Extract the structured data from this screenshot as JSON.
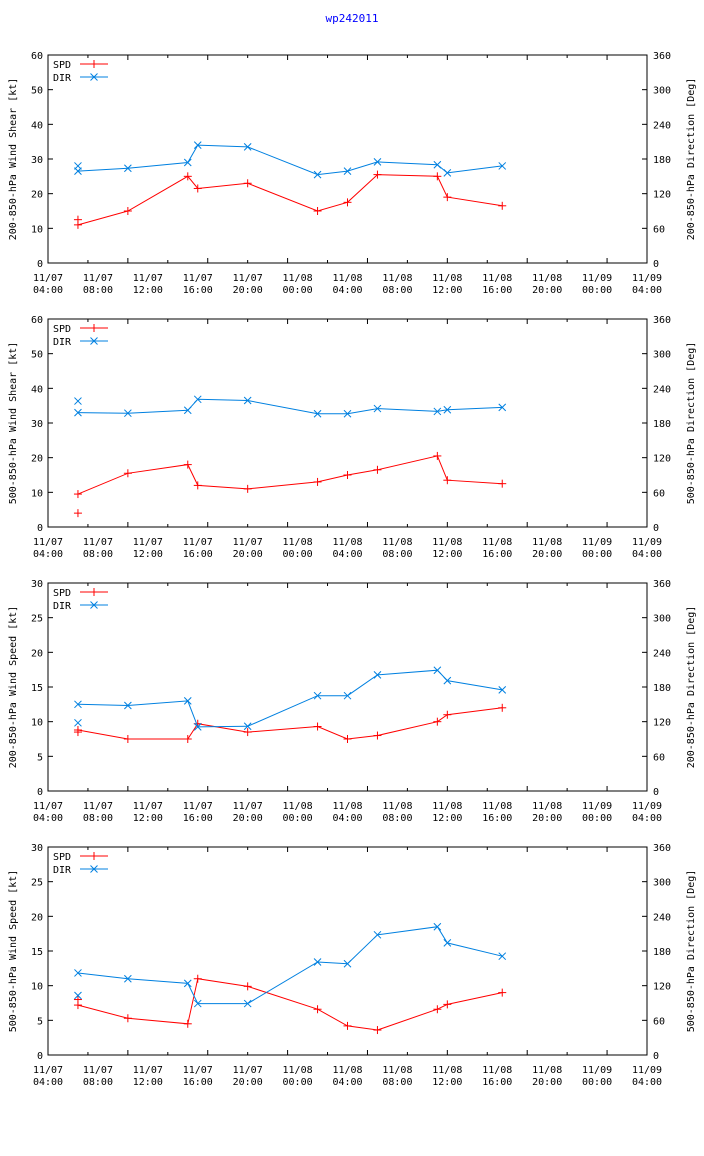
{
  "title": "wp242011",
  "colors": {
    "spd": "#ff0000",
    "dir": "#0080e0",
    "axis": "#000000",
    "title": "#0000ff"
  },
  "legend": {
    "spd": "SPD",
    "dir": "DIR"
  },
  "chart_data": [
    {
      "type": "line",
      "ylabel": "200-850-hPa Wind Shear [kt]",
      "y2label": "200-850-hPa Direction [Deg]",
      "ylim": [
        0,
        60
      ],
      "yticks": [
        0,
        10,
        20,
        30,
        40,
        50,
        60
      ],
      "y2lim": [
        0,
        360
      ],
      "y2ticks": [
        0,
        60,
        120,
        180,
        240,
        300,
        360
      ],
      "xlim": [
        0,
        60
      ],
      "xticks": [
        0,
        4,
        8,
        12,
        16,
        20,
        24,
        28,
        32,
        36,
        40,
        44,
        48,
        52,
        56,
        60
      ],
      "xticklabels_top": [
        "11/07",
        "11/07",
        "11/07",
        "11/07",
        "11/07",
        "11/08",
        "11/08",
        "11/08",
        "11/08",
        "11/08",
        "11/08",
        "11/09",
        "11/09"
      ],
      "xticklabels_bottom": [
        "04:00",
        "08:00",
        "12:00",
        "16:00",
        "20:00",
        "00:00",
        "04:00",
        "08:00",
        "12:00",
        "16:00",
        "20:00",
        "00:00",
        "04:00"
      ],
      "series": [
        {
          "name": "SPD",
          "axis": "left",
          "x": [
            3.0,
            3.0,
            8.0,
            14.0,
            15.0,
            20.0,
            27.0,
            30.0,
            33.0,
            39.0,
            40.0,
            45.5
          ],
          "y": [
            12.5,
            11.0,
            15.0,
            25.0,
            21.5,
            23.0,
            15.0,
            17.5,
            25.5,
            25.0,
            19.0,
            16.5
          ]
        },
        {
          "name": "DIR",
          "axis": "right",
          "x": [
            3.0,
            3.0,
            8.0,
            14.0,
            15.0,
            20.0,
            27.0,
            30.0,
            33.0,
            39.0,
            40.0,
            45.5
          ],
          "y": [
            168,
            159,
            164,
            174,
            204,
            201,
            153,
            159,
            175,
            170,
            156,
            168
          ]
        }
      ]
    },
    {
      "type": "line",
      "ylabel": "500-850-hPa Wind Shear [kt]",
      "y2label": "500-850-hPa Direction [Deg]",
      "ylim": [
        0,
        60
      ],
      "yticks": [
        0,
        10,
        20,
        30,
        40,
        50,
        60
      ],
      "y2lim": [
        0,
        360
      ],
      "y2ticks": [
        0,
        60,
        120,
        180,
        240,
        300,
        360
      ],
      "xlim": [
        0,
        60
      ],
      "xticks": [
        0,
        4,
        8,
        12,
        16,
        20,
        24,
        28,
        32,
        36,
        40,
        44,
        48,
        52,
        56,
        60
      ],
      "xticklabels_top": [
        "11/07",
        "11/07",
        "11/07",
        "11/07",
        "11/07",
        "11/08",
        "11/08",
        "11/08",
        "11/08",
        "11/08",
        "11/08",
        "11/09",
        "11/09"
      ],
      "xticklabels_bottom": [
        "04:00",
        "08:00",
        "12:00",
        "16:00",
        "20:00",
        "00:00",
        "04:00",
        "08:00",
        "12:00",
        "16:00",
        "20:00",
        "00:00",
        "04:00"
      ],
      "series": [
        {
          "name": "SPD",
          "axis": "left",
          "x": [
            3.0,
            3.0,
            8.0,
            14.0,
            15.0,
            20.0,
            27.0,
            30.0,
            33.0,
            39.0,
            40.0,
            45.5
          ],
          "y": [
            4.0,
            9.5,
            15.5,
            18.0,
            12.0,
            11.0,
            13.0,
            15.0,
            16.5,
            20.5,
            13.5,
            12.5
          ]
        },
        {
          "name": "DIR",
          "axis": "right",
          "x": [
            3.0,
            3.0,
            8.0,
            14.0,
            15.0,
            20.0,
            27.0,
            30.0,
            33.0,
            39.0,
            40.0,
            45.5
          ],
          "y": [
            218,
            198,
            197,
            202,
            221,
            219,
            196,
            196,
            205,
            200,
            203,
            207
          ]
        }
      ]
    },
    {
      "type": "line",
      "ylabel": "200-850-hPa Wind Speed [kt]",
      "y2label": "200-850-hPa Direction [Deg]",
      "ylim": [
        0,
        30
      ],
      "yticks": [
        0,
        5,
        10,
        15,
        20,
        25,
        30
      ],
      "y2lim": [
        0,
        360
      ],
      "y2ticks": [
        0,
        60,
        120,
        180,
        240,
        300,
        360
      ],
      "xlim": [
        0,
        60
      ],
      "xticks": [
        0,
        4,
        8,
        12,
        16,
        20,
        24,
        28,
        32,
        36,
        40,
        44,
        48,
        52,
        56,
        60
      ],
      "xticklabels_top": [
        "11/07",
        "11/07",
        "11/07",
        "11/07",
        "11/07",
        "11/08",
        "11/08",
        "11/08",
        "11/08",
        "11/08",
        "11/08",
        "11/09",
        "11/09"
      ],
      "xticklabels_bottom": [
        "04:00",
        "08:00",
        "12:00",
        "16:00",
        "20:00",
        "00:00",
        "04:00",
        "08:00",
        "12:00",
        "16:00",
        "20:00",
        "00:00",
        "04:00"
      ],
      "series": [
        {
          "name": "SPD",
          "axis": "left",
          "x": [
            3.0,
            3.0,
            8.0,
            14.0,
            15.0,
            20.0,
            27.0,
            30.0,
            33.0,
            39.0,
            40.0,
            45.5
          ],
          "y": [
            8.5,
            8.8,
            7.5,
            7.5,
            9.7,
            8.5,
            9.3,
            7.5,
            8.0,
            10.0,
            11.0,
            12.0
          ]
        },
        {
          "name": "DIR",
          "axis": "right",
          "x": [
            3.0,
            3.0,
            8.0,
            14.0,
            15.0,
            20.0,
            27.0,
            30.0,
            33.0,
            39.0,
            40.0,
            45.5
          ],
          "y": [
            118,
            150,
            148,
            156,
            111,
            112,
            165,
            165,
            201,
            209,
            191,
            175
          ]
        }
      ]
    },
    {
      "type": "line",
      "ylabel": "500-850-hPa Wind Speed [kt]",
      "y2label": "500-850-hPa Direction [Deg]",
      "ylim": [
        0,
        30
      ],
      "yticks": [
        0,
        5,
        10,
        15,
        20,
        25,
        30
      ],
      "y2lim": [
        0,
        360
      ],
      "y2ticks": [
        0,
        60,
        120,
        180,
        240,
        300,
        360
      ],
      "xlim": [
        0,
        60
      ],
      "xticks": [
        0,
        4,
        8,
        12,
        16,
        20,
        24,
        28,
        32,
        36,
        40,
        44,
        48,
        52,
        56,
        60
      ],
      "xticklabels_top": [
        "11/07",
        "11/07",
        "11/07",
        "11/07",
        "11/07",
        "11/08",
        "11/08",
        "11/08",
        "11/08",
        "11/08",
        "11/08",
        "11/09",
        "11/09"
      ],
      "xticklabels_bottom": [
        "04:00",
        "08:00",
        "12:00",
        "16:00",
        "20:00",
        "00:00",
        "04:00",
        "08:00",
        "12:00",
        "16:00",
        "20:00",
        "00:00",
        "04:00"
      ],
      "series": [
        {
          "name": "SPD",
          "axis": "left",
          "x": [
            3.0,
            3.0,
            8.0,
            14.0,
            15.0,
            20.0,
            27.0,
            30.0,
            33.0,
            39.0,
            40.0,
            45.5
          ],
          "y": [
            8.0,
            7.2,
            5.3,
            4.5,
            11.0,
            9.9,
            6.6,
            4.2,
            3.6,
            6.6,
            7.3,
            9.0
          ]
        },
        {
          "name": "DIR",
          "axis": "right",
          "x": [
            3.0,
            3.0,
            8.0,
            14.0,
            15.0,
            20.0,
            27.0,
            30.0,
            33.0,
            39.0,
            40.0,
            45.5
          ],
          "y": [
            103,
            142,
            132,
            124,
            89,
            89,
            161,
            158,
            208,
            222,
            194,
            171
          ]
        }
      ]
    }
  ]
}
